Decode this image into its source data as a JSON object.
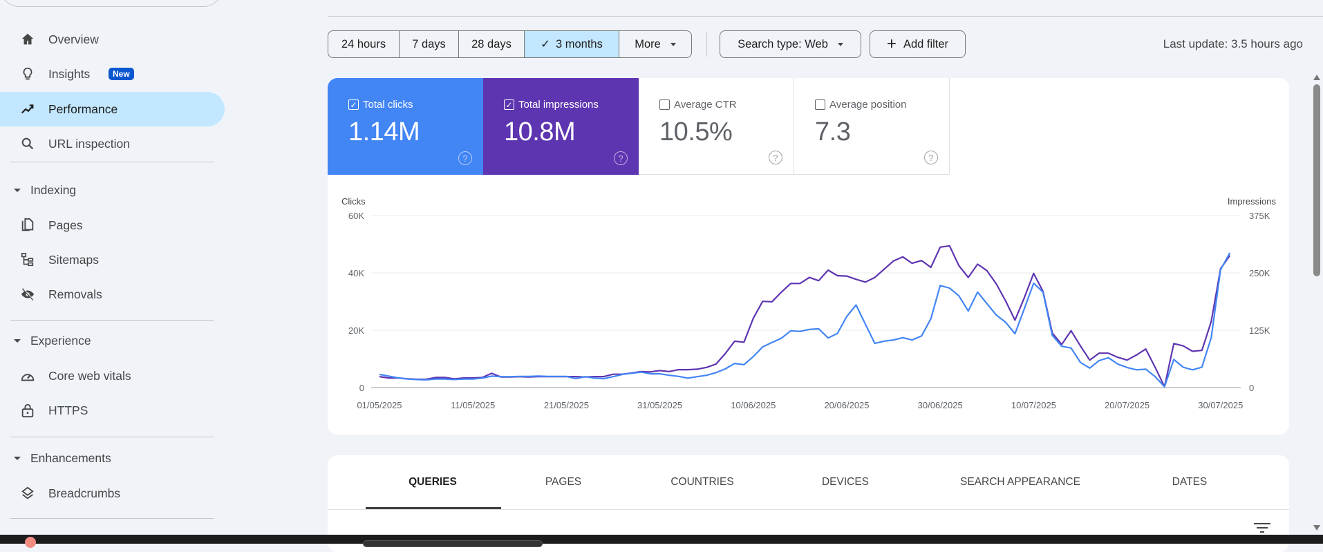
{
  "sidebar": {
    "items": [
      {
        "label": "Overview",
        "icon": "home-icon"
      },
      {
        "label": "Insights",
        "icon": "lightbulb-icon",
        "badge": "New"
      },
      {
        "label": "Performance",
        "icon": "trending-up-icon",
        "active": true
      },
      {
        "label": "URL inspection",
        "icon": "search-icon"
      }
    ],
    "sections": [
      {
        "label": "Indexing",
        "items": [
          {
            "label": "Pages",
            "icon": "pages-icon"
          },
          {
            "label": "Sitemaps",
            "icon": "sitemap-icon"
          },
          {
            "label": "Removals",
            "icon": "eye-off-icon"
          }
        ]
      },
      {
        "label": "Experience",
        "items": [
          {
            "label": "Core web vitals",
            "icon": "gauge-icon"
          },
          {
            "label": "HTTPS",
            "icon": "lock-icon"
          }
        ]
      },
      {
        "label": "Enhancements",
        "items": [
          {
            "label": "Breadcrumbs",
            "icon": "layers-icon"
          }
        ]
      }
    ]
  },
  "toolbar": {
    "ranges": [
      "24 hours",
      "7 days",
      "28 days",
      "3 months",
      "More"
    ],
    "selected_range": "3 months",
    "search_type": "Search type: Web",
    "add_filter": "Add filter",
    "last_update": "Last update: 3.5 hours ago"
  },
  "metrics": [
    {
      "label": "Total clicks",
      "value": "1.14M",
      "checked": true,
      "color": "#4285f4"
    },
    {
      "label": "Total impressions",
      "value": "10.8M",
      "checked": true,
      "color": "#5e35b1"
    },
    {
      "label": "Average CTR",
      "value": "10.5%",
      "checked": false
    },
    {
      "label": "Average position",
      "value": "7.3",
      "checked": false
    }
  ],
  "tabs": [
    "QUERIES",
    "PAGES",
    "COUNTRIES",
    "DEVICES",
    "SEARCH APPEARANCE",
    "DATES"
  ],
  "selected_tab": "QUERIES",
  "chart_data": {
    "type": "line",
    "start_date": "01/05/2025",
    "x_tick_labels": [
      "01/05/2025",
      "11/05/2025",
      "21/05/2025",
      "31/05/2025",
      "10/06/2025",
      "20/06/2025",
      "30/06/2025",
      "10/07/2025",
      "20/07/2025",
      "30/07/2025"
    ],
    "left_axis": {
      "label": "Clicks",
      "ticks": [
        "0",
        "20K",
        "40K",
        "60K"
      ],
      "range": [
        0,
        60000
      ]
    },
    "right_axis": {
      "label": "Impressions",
      "ticks": [
        "0",
        "125K",
        "250K",
        "375K"
      ],
      "range": [
        0,
        375000
      ]
    },
    "grid": true,
    "series": [
      {
        "name": "Clicks",
        "axis": "left",
        "color": "#4285f4",
        "unit": "K",
        "values": [
          4.6,
          4.0,
          3.4,
          3.0,
          2.8,
          2.7,
          3.0,
          3.0,
          2.8,
          3.0,
          3.0,
          3.3,
          4.0,
          3.8,
          3.8,
          3.9,
          3.9,
          4.0,
          3.9,
          3.9,
          3.9,
          3.1,
          3.8,
          3.3,
          3.1,
          3.8,
          4.6,
          5.0,
          5.4,
          4.8,
          4.8,
          4.3,
          3.9,
          3.3,
          3.8,
          4.3,
          5.2,
          6.5,
          8.4,
          8.0,
          10.8,
          14.2,
          15.7,
          17.2,
          19.8,
          19.6,
          20.3,
          20.5,
          17.3,
          18.9,
          24.8,
          28.8,
          22.1,
          15.4,
          16.2,
          16.6,
          17.4,
          16.6,
          18.0,
          24.0,
          35.6,
          34.7,
          32.0,
          26.7,
          33.3,
          29.3,
          25.3,
          22.8,
          18.8,
          27.5,
          36.4,
          33.3,
          18.2,
          14.4,
          13.8,
          8.8,
          6.8,
          9.4,
          10.4,
          8.2,
          7.0,
          6.2,
          6.4,
          3.8,
          0.3,
          9.8,
          7.1,
          6.2,
          7.1,
          17.4,
          41.1,
          47.0
        ]
      },
      {
        "name": "Impressions",
        "axis": "right",
        "color": "#5e35b1",
        "unit": "K",
        "values": [
          24,
          21,
          21,
          19,
          18,
          18,
          22,
          22,
          19,
          21,
          21,
          22,
          31,
          23,
          23,
          24,
          23,
          24,
          24,
          24,
          24,
          24,
          23,
          24,
          24,
          29,
          29,
          32,
          35,
          34,
          37,
          35,
          39,
          39,
          40,
          44,
          51,
          74,
          101,
          99,
          151,
          188,
          187,
          208,
          227,
          227,
          240,
          233,
          256,
          244,
          243,
          236,
          230,
          240,
          258,
          276,
          285,
          271,
          277,
          262,
          306,
          309,
          266,
          240,
          269,
          255,
          226,
          189,
          147,
          196,
          249,
          210,
          119,
          94,
          124,
          91,
          60,
          75,
          75,
          66,
          60,
          71,
          84,
          44,
          2,
          96,
          91,
          79,
          81,
          144,
          259,
          288
        ]
      }
    ]
  }
}
